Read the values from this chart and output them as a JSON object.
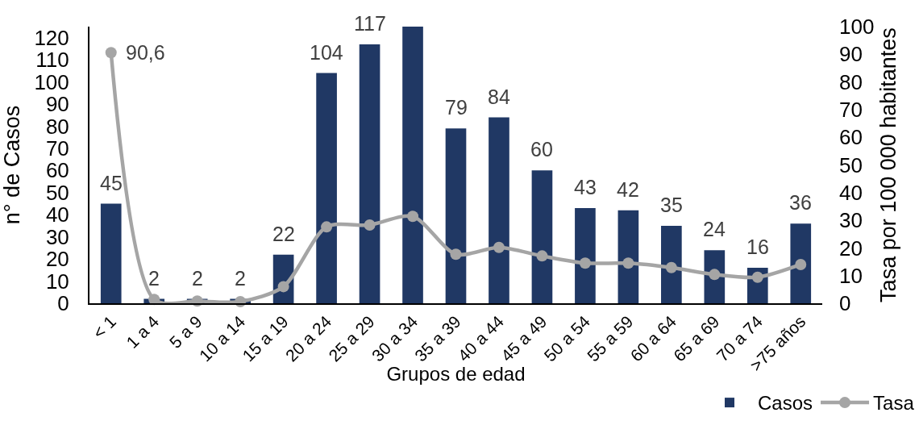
{
  "chart_data": {
    "type": "bar",
    "xlabel": "Grupos de edad",
    "ylabel": "n° de Casos",
    "y2label": "Tasa por 100 000 habitantes",
    "categories": [
      "< 1",
      "1 a 4",
      "5 a 9",
      "10 a 14",
      "15 a 19",
      "20 a 24",
      "25 a 29",
      "30 a 34",
      "35 a 39",
      "40 a 44",
      "45 a 49",
      "50 a 54",
      "55 a 59",
      "60 a 64",
      "65 a 69",
      "70 a 74",
      ">75 años"
    ],
    "series": [
      {
        "name": "Casos",
        "color": "#203864",
        "values": [
          45,
          2,
          2,
          2,
          22,
          104,
          117,
          125,
          79,
          84,
          60,
          43,
          42,
          35,
          24,
          16,
          36
        ],
        "value_labels": [
          "45",
          "2",
          "2",
          "2",
          "22",
          "104",
          "117",
          null,
          "79",
          "84",
          "60",
          "43",
          "42",
          "35",
          "24",
          "16",
          "36"
        ]
      },
      {
        "name": "Tasa",
        "type": "line",
        "axis": "y2",
        "color": "#a5a5a5",
        "marker": "circle",
        "line_style": "solid",
        "values": [
          90.6,
          1.4,
          0.8,
          0.6,
          6,
          27.6,
          28.3,
          31.4,
          17.7,
          20.2,
          17.1,
          14.5,
          14.5,
          12.9,
          10.4,
          9.4,
          14
        ],
        "value_labels": [
          "90,6",
          null,
          null,
          null,
          null,
          null,
          null,
          null,
          null,
          null,
          null,
          null,
          null,
          null,
          null,
          null,
          null
        ]
      }
    ],
    "ylim": [
      0,
      125
    ],
    "yticks": [
      0,
      10,
      20,
      30,
      40,
      50,
      60,
      70,
      80,
      90,
      100,
      110,
      120
    ],
    "y2lim": [
      0,
      100
    ],
    "y2ticks": [
      0,
      10,
      20,
      30,
      40,
      50,
      60,
      70,
      80,
      90,
      100
    ],
    "grid": false,
    "legend": "bottom right"
  }
}
